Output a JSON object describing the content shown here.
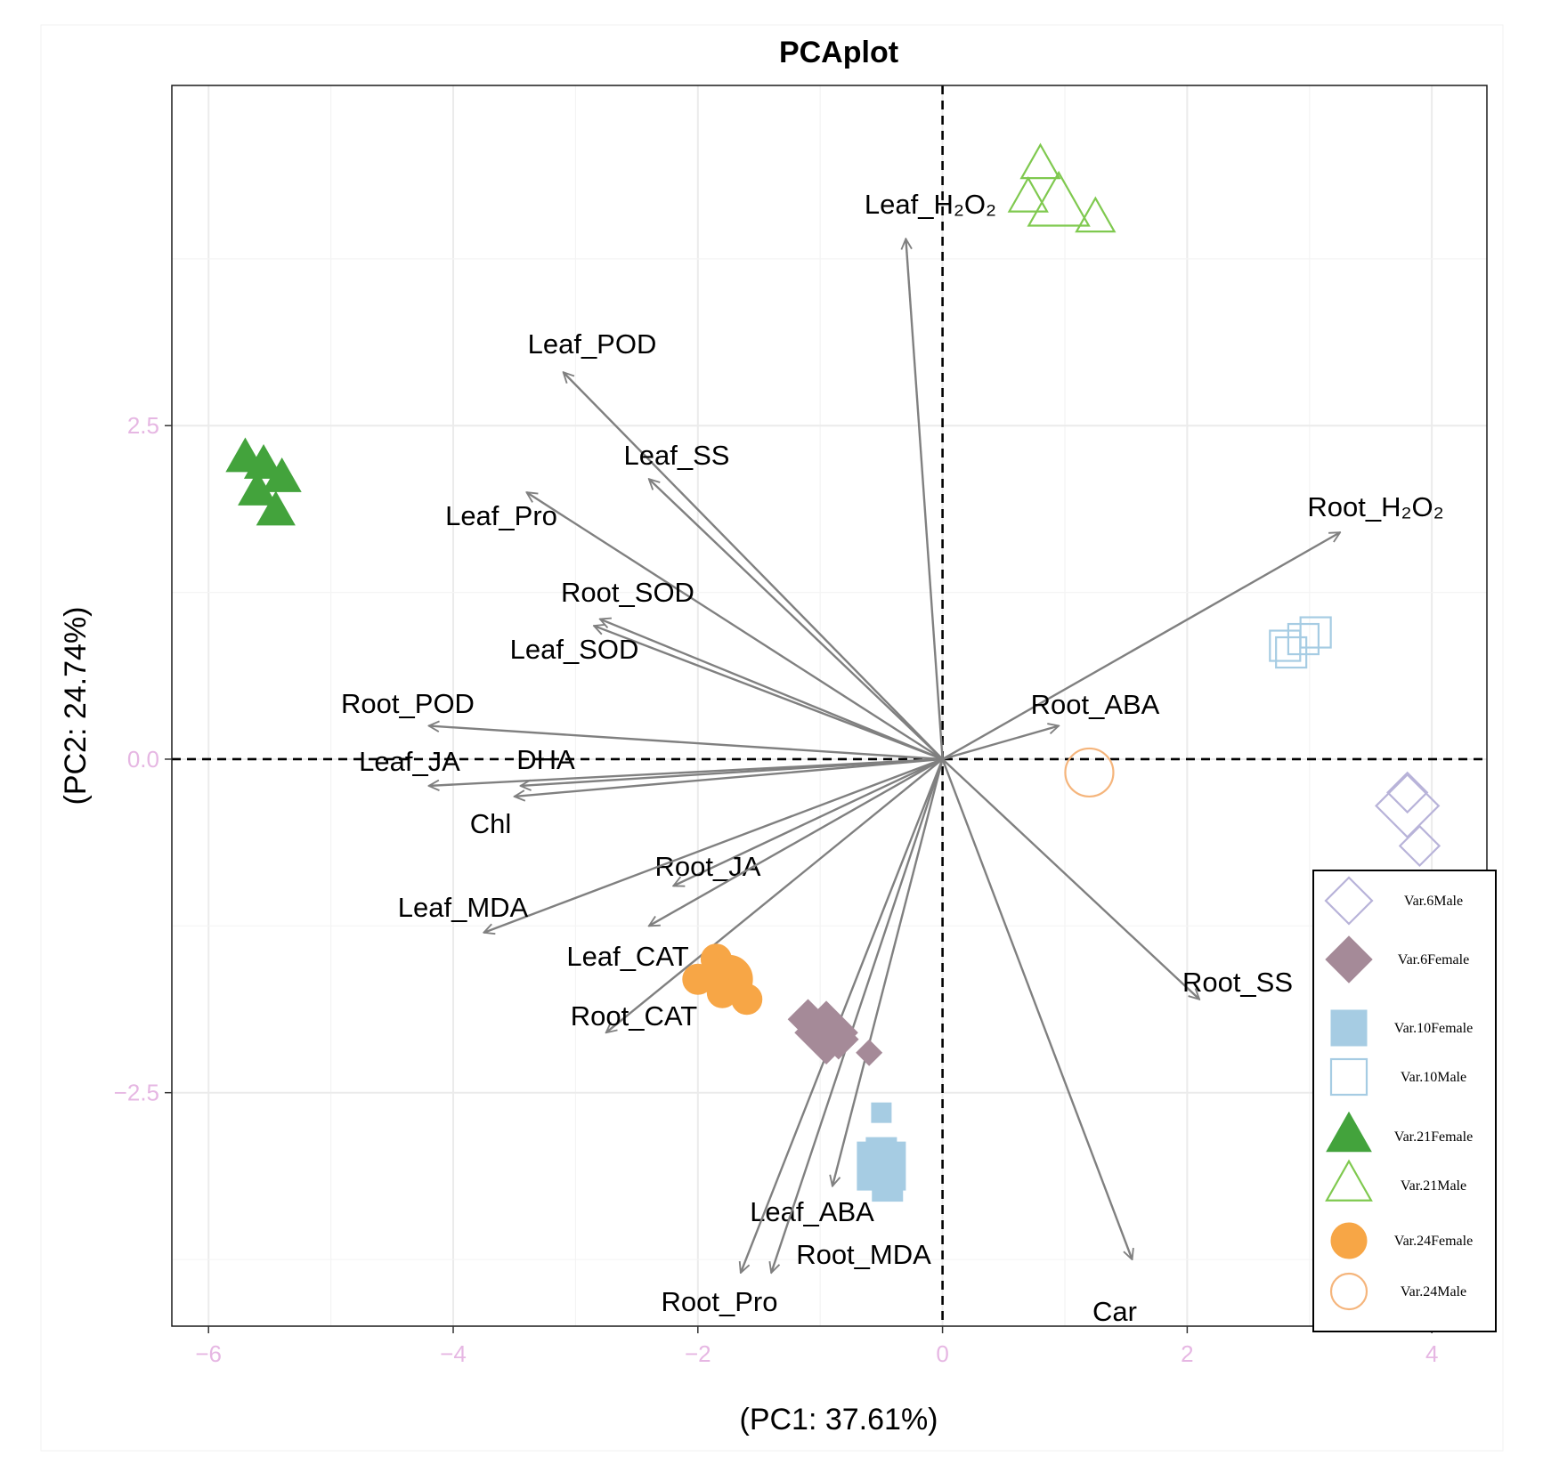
{
  "chart_data": {
    "type": "scatter",
    "title": "PCAplot",
    "xlabel": "(PC1: 37.61%)",
    "ylabel": "(PC2: 24.74%)",
    "xlim": [
      -6.3,
      4.45
    ],
    "ylim": [
      -4.25,
      5.05
    ],
    "x_ticks": [
      -6,
      -4,
      -2,
      0,
      2,
      4
    ],
    "x_tick_labels": [
      "−6",
      "−4",
      "−2",
      "0",
      "2",
      "4"
    ],
    "y_ticks": [
      -2.5,
      0.0,
      2.5
    ],
    "y_tick_labels": [
      "−2.5",
      "0.0",
      "2.5"
    ],
    "tick_label_color": "#e6b7e3",
    "grid": true,
    "reference_lines": {
      "x": 0,
      "y": 0,
      "style": "dashed"
    },
    "legend_position": "bottom-right",
    "groups": [
      {
        "name": "Var.6Male",
        "shape": "diamond",
        "filled": false,
        "color": "#b8b3d9",
        "points": [
          {
            "x": 3.8,
            "y": -0.35,
            "size": "large"
          },
          {
            "x": 3.8,
            "y": -0.25
          },
          {
            "x": 3.9,
            "y": -0.65
          }
        ]
      },
      {
        "name": "Var.6Female",
        "shape": "diamond",
        "filled": true,
        "color": "#a58a98",
        "points": [
          {
            "x": -1.1,
            "y": -1.95
          },
          {
            "x": -0.95,
            "y": -2.05,
            "size": "large"
          },
          {
            "x": -0.85,
            "y": -2.1
          },
          {
            "x": -0.6,
            "y": -2.2,
            "size": "small"
          }
        ]
      },
      {
        "name": "Var.10Female",
        "shape": "square",
        "filled": true,
        "color": "#a6cce3",
        "points": [
          {
            "x": -0.5,
            "y": -2.65,
            "size": "small"
          },
          {
            "x": -0.5,
            "y": -2.95
          },
          {
            "x": -0.5,
            "y": -3.05,
            "size": "large"
          },
          {
            "x": -0.45,
            "y": -3.2
          }
        ]
      },
      {
        "name": "Var.10Male",
        "shape": "square",
        "filled": false,
        "color": "#a6cce3",
        "points": [
          {
            "x": 2.8,
            "y": 0.85
          },
          {
            "x": 2.85,
            "y": 0.8
          },
          {
            "x": 2.95,
            "y": 0.9
          },
          {
            "x": 3.05,
            "y": 0.95
          }
        ]
      },
      {
        "name": "Var.21Female",
        "shape": "triangle",
        "filled": true,
        "color": "#43a33c",
        "points": [
          {
            "x": -5.7,
            "y": 2.25
          },
          {
            "x": -5.55,
            "y": 2.2
          },
          {
            "x": -5.4,
            "y": 2.1
          },
          {
            "x": -5.6,
            "y": 2.0
          },
          {
            "x": -5.45,
            "y": 1.85
          }
        ]
      },
      {
        "name": "Var.21Male",
        "shape": "triangle",
        "filled": false,
        "color": "#7fc94f",
        "points": [
          {
            "x": 0.8,
            "y": 4.45
          },
          {
            "x": 0.7,
            "y": 4.2
          },
          {
            "x": 0.95,
            "y": 4.15,
            "size": "large"
          },
          {
            "x": 1.25,
            "y": 4.05
          }
        ]
      },
      {
        "name": "Var.24Female",
        "shape": "circle",
        "filled": true,
        "color": "#f7a646",
        "points": [
          {
            "x": -1.85,
            "y": -1.5
          },
          {
            "x": -2.0,
            "y": -1.65
          },
          {
            "x": -1.75,
            "y": -1.65,
            "size": "large"
          },
          {
            "x": -1.8,
            "y": -1.75
          },
          {
            "x": -1.6,
            "y": -1.8
          }
        ]
      },
      {
        "name": "Var.24Male",
        "shape": "circle",
        "filled": false,
        "color": "#f5b57c",
        "points": [
          {
            "x": 1.2,
            "y": -0.1,
            "size": "large"
          }
        ]
      }
    ],
    "loadings": [
      {
        "label": "Leaf_H₂O₂",
        "x": -0.3,
        "y": 3.9
      },
      {
        "label": "Leaf_POD",
        "x": -3.1,
        "y": 2.9
      },
      {
        "label": "Leaf_SS",
        "x": -2.4,
        "y": 2.1
      },
      {
        "label": "Leaf_Pro",
        "x": -3.4,
        "y": 2.0
      },
      {
        "label": "Root_SOD",
        "x": -2.8,
        "y": 1.05
      },
      {
        "label": "Leaf_SOD",
        "x": -2.85,
        "y": 1.0
      },
      {
        "label": "Root_POD",
        "x": -4.2,
        "y": 0.25
      },
      {
        "label": "Leaf_JA",
        "x": -4.2,
        "y": -0.2
      },
      {
        "label": "DHA",
        "x": -3.45,
        "y": -0.2
      },
      {
        "label": "Chl",
        "x": -3.5,
        "y": -0.28
      },
      {
        "label": "Root_JA",
        "x": -2.2,
        "y": -0.95
      },
      {
        "label": "Leaf_MDA",
        "x": -3.75,
        "y": -1.3
      },
      {
        "label": "Leaf_CAT",
        "x": -2.4,
        "y": -1.25
      },
      {
        "label": "Root_CAT",
        "x": -2.75,
        "y": -2.05
      },
      {
        "label": "Leaf_ABA",
        "x": -0.9,
        "y": -3.2
      },
      {
        "label": "Root_MDA",
        "x": -1.4,
        "y": -3.85
      },
      {
        "label": "Root_Pro",
        "x": -1.65,
        "y": -3.85
      },
      {
        "label": "Car",
        "x": 1.55,
        "y": -3.75
      },
      {
        "label": "Root_H₂O₂",
        "x": 3.25,
        "y": 1.7
      },
      {
        "label": "Root_ABA",
        "x": 0.95,
        "y": 0.25
      },
      {
        "label": "Root_SS",
        "x": 2.1,
        "y": -1.8
      }
    ]
  }
}
